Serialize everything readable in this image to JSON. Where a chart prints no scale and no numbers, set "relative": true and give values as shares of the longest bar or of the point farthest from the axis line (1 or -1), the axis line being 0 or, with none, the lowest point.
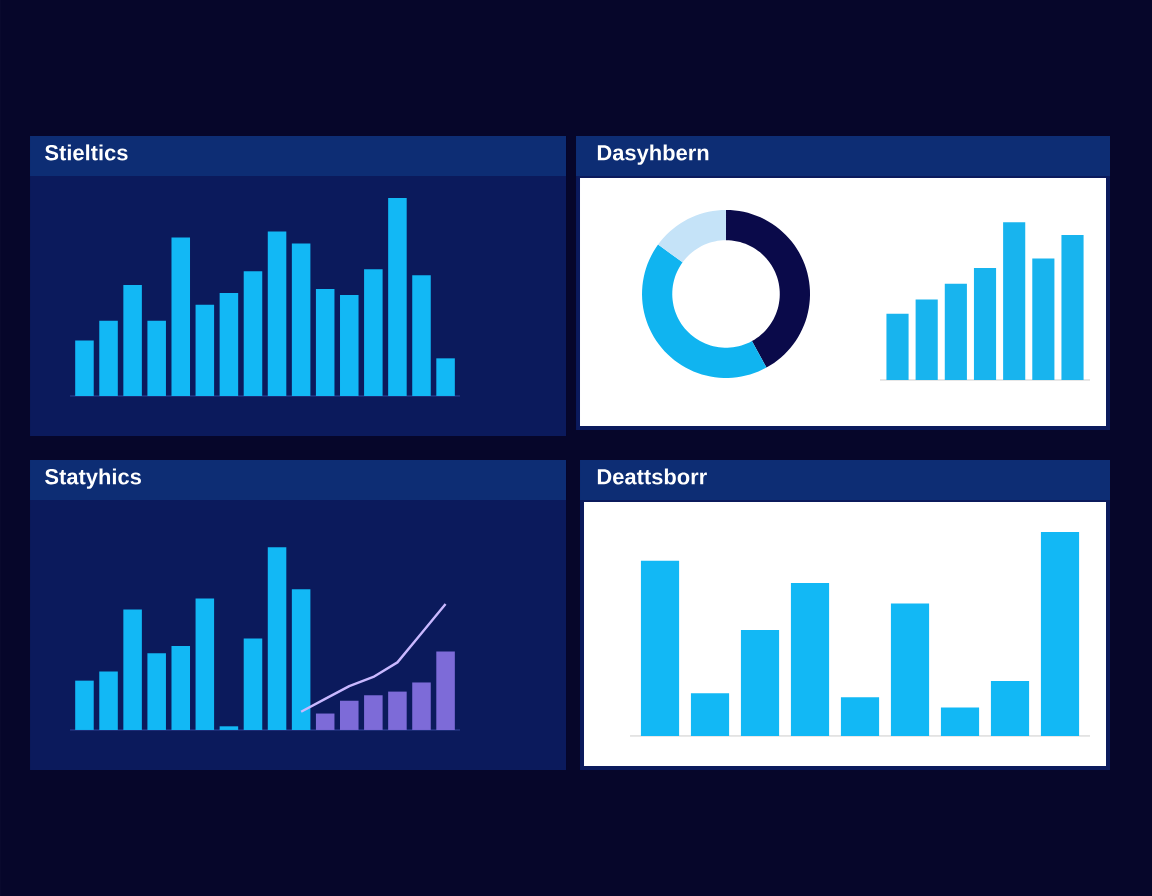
{
  "chart_data": [
    {
      "type": "bar",
      "title": "Stieltics",
      "relative": true,
      "color": "#12b8f5",
      "categories": [
        null,
        null,
        null,
        null,
        null,
        null,
        null,
        null,
        null,
        null,
        null,
        null,
        null,
        null,
        null,
        null
      ],
      "values": [
        0.28,
        0.38,
        0.56,
        0.38,
        0.8,
        0.46,
        0.52,
        0.63,
        0.83,
        0.77,
        0.54,
        0.51,
        0.64,
        1,
        0.61,
        0.19
      ]
    },
    {
      "type": "donut",
      "title": "Dasyhbern",
      "categories": [
        null,
        null,
        null
      ],
      "values": [
        42,
        43,
        15
      ],
      "colors": [
        "#0a0a4a",
        "#10b4f0",
        "#c5e3f8"
      ]
    },
    {
      "type": "bar",
      "relative": true,
      "color": "#18b4ee",
      "categories": [
        null,
        null,
        null,
        null,
        null,
        null,
        null
      ],
      "values": [
        0.42,
        0.51,
        0.61,
        0.71,
        1,
        0.77,
        0.92
      ]
    },
    {
      "type": "bar",
      "title": "Statyhics",
      "relative": true,
      "categories": [
        null,
        null,
        null,
        null,
        null,
        null,
        null,
        null,
        null,
        null,
        null,
        null,
        null,
        null,
        null,
        null
      ],
      "series": [
        {
          "colors": [
            "#12b8f5",
            "#12b8f5",
            "#12b8f5",
            "#12b8f5",
            "#12b8f5",
            "#12b8f5",
            "#12b8f5",
            "#12b8f5",
            "#12b8f5",
            "#12b8f5",
            "#7d6bd8",
            "#7d6bd8",
            "#7d6bd8",
            "#7d6bd8",
            "#7d6bd8",
            "#7d6bd8"
          ],
          "values": [
            0.27,
            0.32,
            0.66,
            0.42,
            0.46,
            0.72,
            0.02,
            0.5,
            1,
            0.77,
            0.09,
            0.16,
            0.19,
            0.21,
            0.26,
            0.43
          ]
        },
        {
          "type": "line",
          "color": "#c9b8ff",
          "values": [
            null,
            null,
            null,
            null,
            null,
            null,
            null,
            null,
            null,
            0.1,
            0.17,
            0.24,
            0.29,
            0.37,
            0.53,
            0.69
          ]
        }
      ]
    },
    {
      "type": "bar",
      "title": "Deattsborr",
      "relative": true,
      "color": "#12b8f5",
      "categories": [
        null,
        null,
        null,
        null,
        null,
        null,
        null,
        null,
        null
      ],
      "values": [
        0.86,
        0.21,
        0.52,
        0.75,
        0.19,
        0.65,
        0.14,
        0.27,
        1
      ]
    }
  ]
}
